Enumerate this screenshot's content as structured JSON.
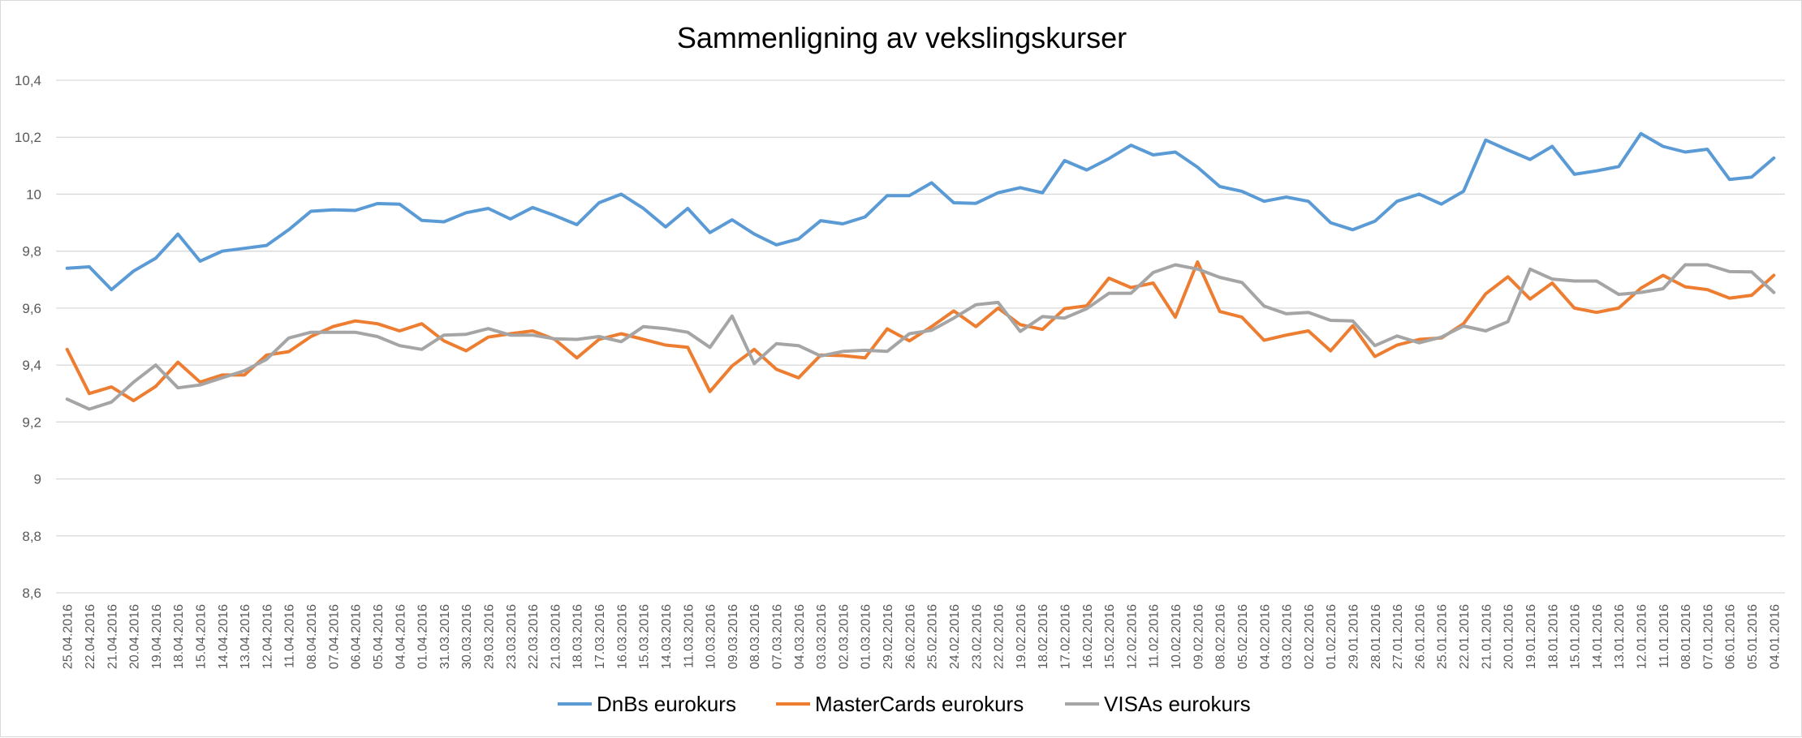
{
  "chart_data": {
    "type": "line",
    "title": "Sammenligning av vekslingskurser",
    "xlabel": "",
    "ylabel": "",
    "ylim": [
      8.6,
      10.4
    ],
    "yticks": [
      "8,6",
      "8,8",
      "9",
      "9,2",
      "9,4",
      "9,6",
      "9,8",
      "10",
      "10,2",
      "10,4"
    ],
    "grid": "horizontal",
    "legend_position": "bottom",
    "x": [
      "25.04.2016",
      "22.04.2016",
      "21.04.2016",
      "20.04.2016",
      "19.04.2016",
      "18.04.2016",
      "15.04.2016",
      "14.04.2016",
      "13.04.2016",
      "12.04.2016",
      "11.04.2016",
      "08.04.2016",
      "07.04.2016",
      "06.04.2016",
      "05.04.2016",
      "04.04.2016",
      "01.04.2016",
      "31.03.2016",
      "30.03.2016",
      "29.03.2016",
      "23.03.2016",
      "22.03.2016",
      "21.03.2016",
      "18.03.2016",
      "17.03.2016",
      "16.03.2016",
      "15.03.2016",
      "14.03.2016",
      "11.03.2016",
      "10.03.2016",
      "09.03.2016",
      "08.03.2016",
      "07.03.2016",
      "04.03.2016",
      "03.03.2016",
      "02.03.2016",
      "01.03.2016",
      "29.02.2016",
      "26.02.2016",
      "25.02.2016",
      "24.02.2016",
      "23.02.2016",
      "22.02.2016",
      "19.02.2016",
      "18.02.2016",
      "17.02.2016",
      "16.02.2016",
      "15.02.2016",
      "12.02.2016",
      "11.02.2016",
      "10.02.2016",
      "09.02.2016",
      "08.02.2016",
      "05.02.2016",
      "04.02.2016",
      "03.02.2016",
      "02.02.2016",
      "01.02.2016",
      "29.01.2016",
      "28.01.2016",
      "27.01.2016",
      "26.01.2016",
      "25.01.2016",
      "22.01.2016",
      "21.01.2016",
      "20.01.2016",
      "19.01.2016",
      "18.01.2016",
      "15.01.2016",
      "14.01.2016",
      "13.01.2016",
      "12.01.2016",
      "11.01.2016",
      "08.01.2016",
      "07.01.2016",
      "06.01.2016",
      "05.01.2016",
      "04.01.2016"
    ],
    "series": [
      {
        "name": "DnBs eurokurs",
        "color": "#5b9bd5",
        "values": [
          9.74,
          9.745,
          9.665,
          9.73,
          9.775,
          9.86,
          9.765,
          9.8,
          9.81,
          9.82,
          9.875,
          9.94,
          9.945,
          9.943,
          9.967,
          9.965,
          9.908,
          9.903,
          9.935,
          9.95,
          9.913,
          9.953,
          9.925,
          9.893,
          9.97,
          10.0,
          9.95,
          9.885,
          9.95,
          9.865,
          9.91,
          9.86,
          9.822,
          9.843,
          9.907,
          9.896,
          9.92,
          9.995,
          9.995,
          10.04,
          9.97,
          9.968,
          10.005,
          10.023,
          10.005,
          10.118,
          10.085,
          10.125,
          10.172,
          10.138,
          10.148,
          10.095,
          10.027,
          10.01,
          9.975,
          9.99,
          9.975,
          9.9,
          9.875,
          9.905,
          9.975,
          10.0,
          9.965,
          10.01,
          10.19,
          10.155,
          10.122,
          10.168,
          10.07,
          10.082,
          10.097,
          10.213,
          10.168,
          10.148,
          10.158,
          10.052,
          10.06,
          10.127
        ]
      },
      {
        "name": "MasterCards eurokurs",
        "color": "#ed7d31",
        "values": [
          9.455,
          9.3,
          9.323,
          9.275,
          9.325,
          9.41,
          9.34,
          9.365,
          9.365,
          9.435,
          9.447,
          9.5,
          9.535,
          9.555,
          9.545,
          9.52,
          9.545,
          9.485,
          9.45,
          9.498,
          9.51,
          9.52,
          9.49,
          9.425,
          9.49,
          9.51,
          9.49,
          9.47,
          9.462,
          9.307,
          9.397,
          9.455,
          9.385,
          9.355,
          9.435,
          9.433,
          9.425,
          9.527,
          9.485,
          9.535,
          9.59,
          9.535,
          9.6,
          9.542,
          9.525,
          9.598,
          9.608,
          9.705,
          9.672,
          9.688,
          9.568,
          9.762,
          9.588,
          9.568,
          9.487,
          9.505,
          9.52,
          9.45,
          9.538,
          9.43,
          9.47,
          9.49,
          9.495,
          9.545,
          9.65,
          9.71,
          9.632,
          9.688,
          9.6,
          9.585,
          9.6,
          9.67,
          9.715,
          9.675,
          9.665,
          9.635,
          9.645,
          9.715
        ]
      },
      {
        "name": "VISAs eurokurs",
        "color": "#a5a5a5",
        "values": [
          9.28,
          9.245,
          9.27,
          9.34,
          9.4,
          9.32,
          9.33,
          9.355,
          9.38,
          9.42,
          9.495,
          9.515,
          9.515,
          9.515,
          9.5,
          9.468,
          9.455,
          9.505,
          9.508,
          9.528,
          9.505,
          9.505,
          9.492,
          9.49,
          9.5,
          9.482,
          9.535,
          9.528,
          9.515,
          9.462,
          9.572,
          9.405,
          9.475,
          9.468,
          9.432,
          9.448,
          9.452,
          9.448,
          9.51,
          9.522,
          9.565,
          9.612,
          9.62,
          9.518,
          9.57,
          9.565,
          9.598,
          9.652,
          9.652,
          9.725,
          9.752,
          9.737,
          9.708,
          9.69,
          9.607,
          9.58,
          9.585,
          9.557,
          9.555,
          9.468,
          9.502,
          9.478,
          9.498,
          9.537,
          9.52,
          9.552,
          9.737,
          9.702,
          9.695,
          9.695,
          9.648,
          9.655,
          9.668,
          9.752,
          9.752,
          9.728,
          9.727,
          9.655
        ]
      }
    ]
  }
}
